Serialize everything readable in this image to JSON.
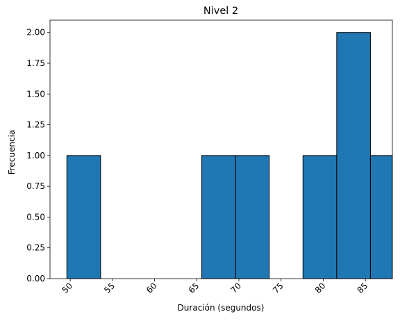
{
  "chart_data": {
    "type": "bar",
    "title": "Nivel 2",
    "xlabel": "Duración (segundos)",
    "ylabel": "Frecuencia",
    "xlim": [
      47.6,
      88.2
    ],
    "ylim": [
      0,
      2.1
    ],
    "x_ticks": [
      50,
      55,
      60,
      65,
      70,
      75,
      80,
      85
    ],
    "x_tick_labels": [
      "50",
      "55",
      "60",
      "65",
      "70",
      "75",
      "80",
      "85"
    ],
    "y_ticks": [
      0,
      0.25,
      0.5,
      0.75,
      1.0,
      1.25,
      1.5,
      1.75,
      2.0
    ],
    "y_tick_labels": [
      "0.00",
      "0.25",
      "0.50",
      "0.75",
      "1.00",
      "1.25",
      "1.50",
      "1.75",
      "2.00"
    ],
    "bin_edges": [
      49.6,
      53.6,
      57.6,
      61.6,
      65.6,
      69.6,
      73.6,
      77.6,
      81.6,
      85.6,
      89.6
    ],
    "bins": [
      {
        "start": 49.6,
        "end": 53.6,
        "count": 1
      },
      {
        "start": 53.6,
        "end": 57.6,
        "count": 0
      },
      {
        "start": 57.6,
        "end": 61.6,
        "count": 0
      },
      {
        "start": 61.6,
        "end": 65.6,
        "count": 0
      },
      {
        "start": 65.6,
        "end": 69.6,
        "count": 1
      },
      {
        "start": 69.6,
        "end": 73.6,
        "count": 1
      },
      {
        "start": 73.6,
        "end": 77.6,
        "count": 0
      },
      {
        "start": 77.6,
        "end": 81.6,
        "count": 1
      },
      {
        "start": 81.6,
        "end": 85.6,
        "count": 2
      },
      {
        "start": 85.6,
        "end": 89.6,
        "count": 1
      }
    ],
    "bar_color": "#1f77b4",
    "edge_color": "#000000",
    "grid": false,
    "x_tick_rotation_deg": 45
  }
}
